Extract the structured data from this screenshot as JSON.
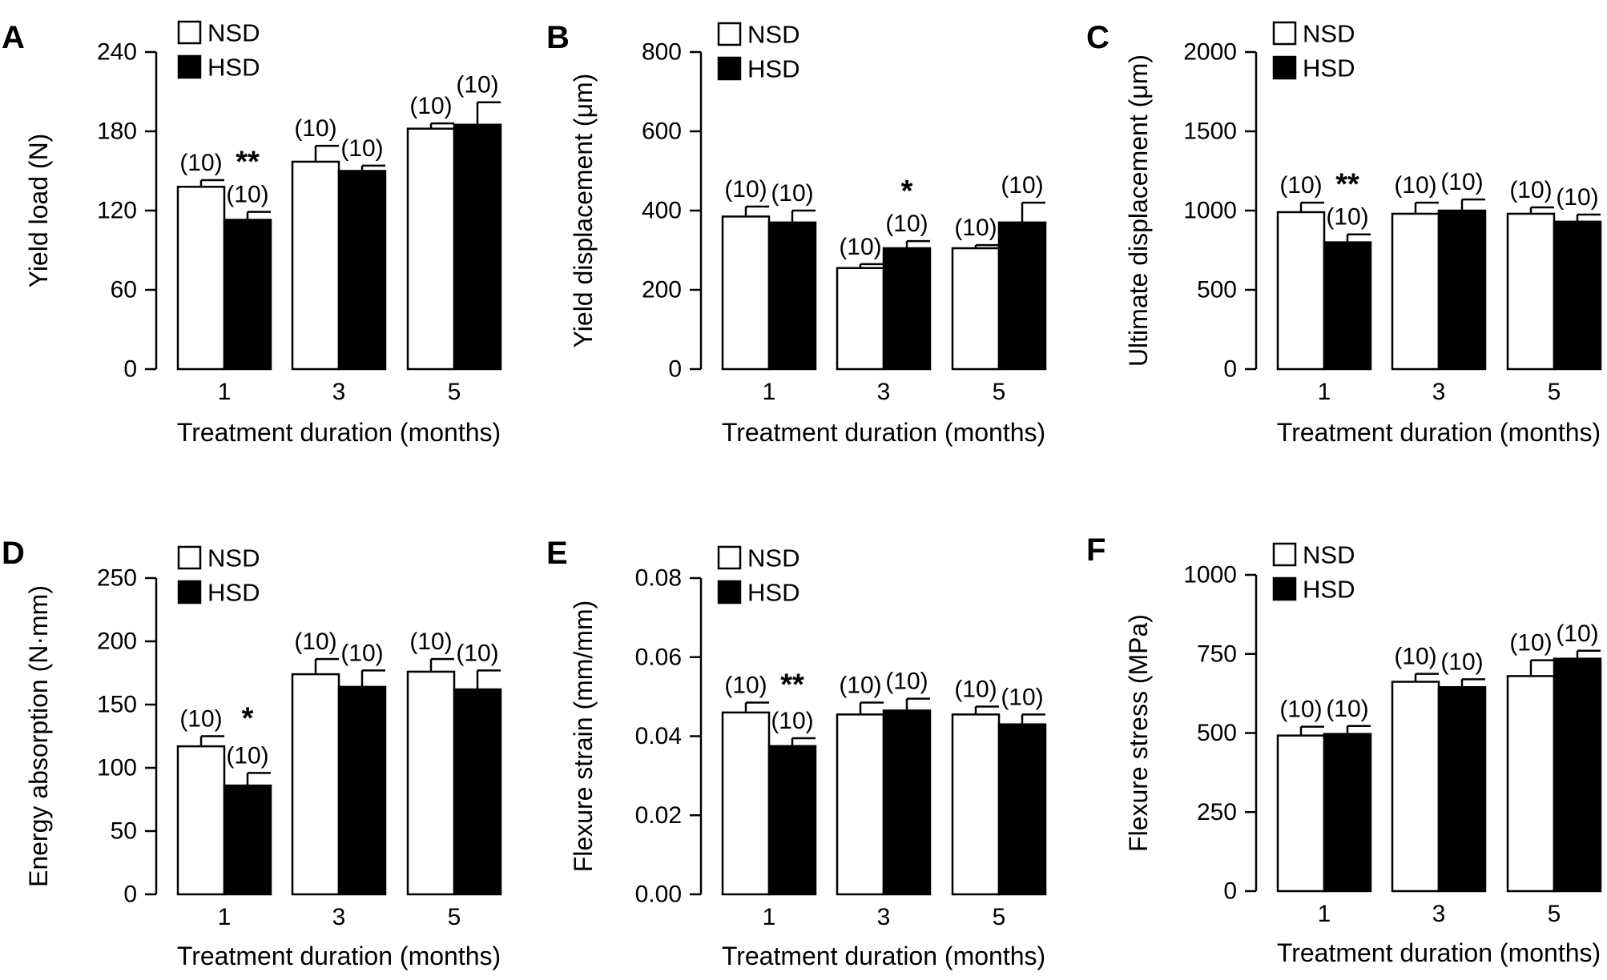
{
  "figure": {
    "legend": {
      "nsd_label": "NSD",
      "hsd_label": "HSD",
      "nsd_color": "#ffffff",
      "hsd_color": "#000000"
    }
  },
  "chart_data": [
    {
      "panel": "A",
      "type": "bar",
      "ylabel": "Yield load (N)",
      "xlabel": "Treatment duration (months)",
      "categories": [
        "1",
        "3",
        "5"
      ],
      "ylim": [
        0,
        240
      ],
      "yticks": [
        0,
        60,
        120,
        180,
        240
      ],
      "ytick_labels": [
        "0",
        "60",
        "120",
        "180",
        "240"
      ],
      "series": [
        {
          "name": "NSD",
          "values": [
            138,
            157,
            182
          ],
          "errors": [
            5,
            12,
            4
          ],
          "n_labels": [
            "(10)",
            "(10)",
            "(10)"
          ]
        },
        {
          "name": "HSD",
          "values": [
            113,
            150,
            185
          ],
          "errors": [
            6,
            4,
            17
          ],
          "n_labels": [
            "(10)",
            "(10)",
            "(10)"
          ]
        }
      ],
      "significance": [
        {
          "category_index": 0,
          "label": "**"
        }
      ]
    },
    {
      "panel": "B",
      "type": "bar",
      "ylabel": "Yield displacement (μm)",
      "xlabel": "Treatment duration (months)",
      "categories": [
        "1",
        "3",
        "5"
      ],
      "ylim": [
        0,
        800
      ],
      "yticks": [
        0,
        200,
        400,
        600,
        800
      ],
      "ytick_labels": [
        "0",
        "200",
        "400",
        "600",
        "800"
      ],
      "series": [
        {
          "name": "NSD",
          "values": [
            385,
            255,
            305
          ],
          "errors": [
            25,
            10,
            8
          ],
          "n_labels": [
            "(10)",
            "(10)",
            "(10)"
          ]
        },
        {
          "name": "HSD",
          "values": [
            370,
            305,
            370
          ],
          "errors": [
            30,
            18,
            50
          ],
          "n_labels": [
            "(10)",
            "(10)",
            "(10)"
          ]
        }
      ],
      "significance": [
        {
          "category_index": 1,
          "label": "*"
        }
      ]
    },
    {
      "panel": "C",
      "type": "bar",
      "ylabel": "Ultimate displacement (μm)",
      "xlabel": "Treatment duration (months)",
      "categories": [
        "1",
        "3",
        "5"
      ],
      "ylim": [
        0,
        2000
      ],
      "yticks": [
        0,
        500,
        1000,
        1500,
        2000
      ],
      "ytick_labels": [
        "0",
        "500",
        "1000",
        "1500",
        "2000"
      ],
      "series": [
        {
          "name": "NSD",
          "values": [
            990,
            980,
            980
          ],
          "errors": [
            60,
            70,
            40
          ],
          "n_labels": [
            "(10)",
            "(10)",
            "(10)"
          ]
        },
        {
          "name": "HSD",
          "values": [
            800,
            1000,
            930
          ],
          "errors": [
            50,
            70,
            45
          ],
          "n_labels": [
            "(10)",
            "(10)",
            "(10)"
          ]
        }
      ],
      "significance": [
        {
          "category_index": 0,
          "label": "**"
        }
      ]
    },
    {
      "panel": "D",
      "type": "bar",
      "ylabel": "Energy absorption (N·mm)",
      "xlabel": "Treatment duration (months)",
      "categories": [
        "1",
        "3",
        "5"
      ],
      "ylim": [
        0,
        250
      ],
      "yticks": [
        0,
        50,
        100,
        150,
        200,
        250
      ],
      "ytick_labels": [
        "0",
        "50",
        "100",
        "150",
        "200",
        "250"
      ],
      "series": [
        {
          "name": "NSD",
          "values": [
            117,
            174,
            176
          ],
          "errors": [
            8,
            12,
            10
          ],
          "n_labels": [
            "(10)",
            "(10)",
            "(10)"
          ]
        },
        {
          "name": "HSD",
          "values": [
            86,
            164,
            162
          ],
          "errors": [
            10,
            13,
            15
          ],
          "n_labels": [
            "(10)",
            "(10)",
            "(10)"
          ]
        }
      ],
      "significance": [
        {
          "category_index": 0,
          "label": "*"
        }
      ]
    },
    {
      "panel": "E",
      "type": "bar",
      "ylabel": "Flexure strain (mm/mm)",
      "xlabel": "Treatment duration (months)",
      "categories": [
        "1",
        "3",
        "5"
      ],
      "ylim": [
        0,
        0.08
      ],
      "yticks": [
        0,
        0.02,
        0.04,
        0.06,
        0.08
      ],
      "ytick_labels": [
        "0.00",
        "0.02",
        "0.04",
        "0.06",
        "0.08"
      ],
      "series": [
        {
          "name": "NSD",
          "values": [
            0.046,
            0.0455,
            0.0455
          ],
          "errors": [
            0.0025,
            0.003,
            0.002
          ],
          "n_labels": [
            "(10)",
            "(10)",
            "(10)"
          ]
        },
        {
          "name": "HSD",
          "values": [
            0.0375,
            0.0465,
            0.043
          ],
          "errors": [
            0.002,
            0.003,
            0.0025
          ],
          "n_labels": [
            "(10)",
            "(10)",
            "(10)"
          ]
        }
      ],
      "significance": [
        {
          "category_index": 0,
          "label": "**"
        }
      ]
    },
    {
      "panel": "F",
      "type": "bar",
      "ylabel": "Flexure stress (MPa)",
      "xlabel": "Treatment duration (months)",
      "categories": [
        "1",
        "3",
        "5"
      ],
      "ylim": [
        0,
        1000
      ],
      "yticks": [
        0,
        250,
        500,
        750,
        1000
      ],
      "ytick_labels": [
        "0",
        "250",
        "500",
        "750",
        "1000"
      ],
      "series": [
        {
          "name": "NSD",
          "values": [
            492,
            662,
            680
          ],
          "errors": [
            28,
            25,
            50
          ],
          "n_labels": [
            "(10)",
            "(10)",
            "(10)"
          ]
        },
        {
          "name": "HSD",
          "values": [
            497,
            645,
            735
          ],
          "errors": [
            25,
            25,
            25
          ],
          "n_labels": [
            "(10)",
            "(10)",
            "(10)"
          ]
        }
      ],
      "significance": []
    }
  ]
}
